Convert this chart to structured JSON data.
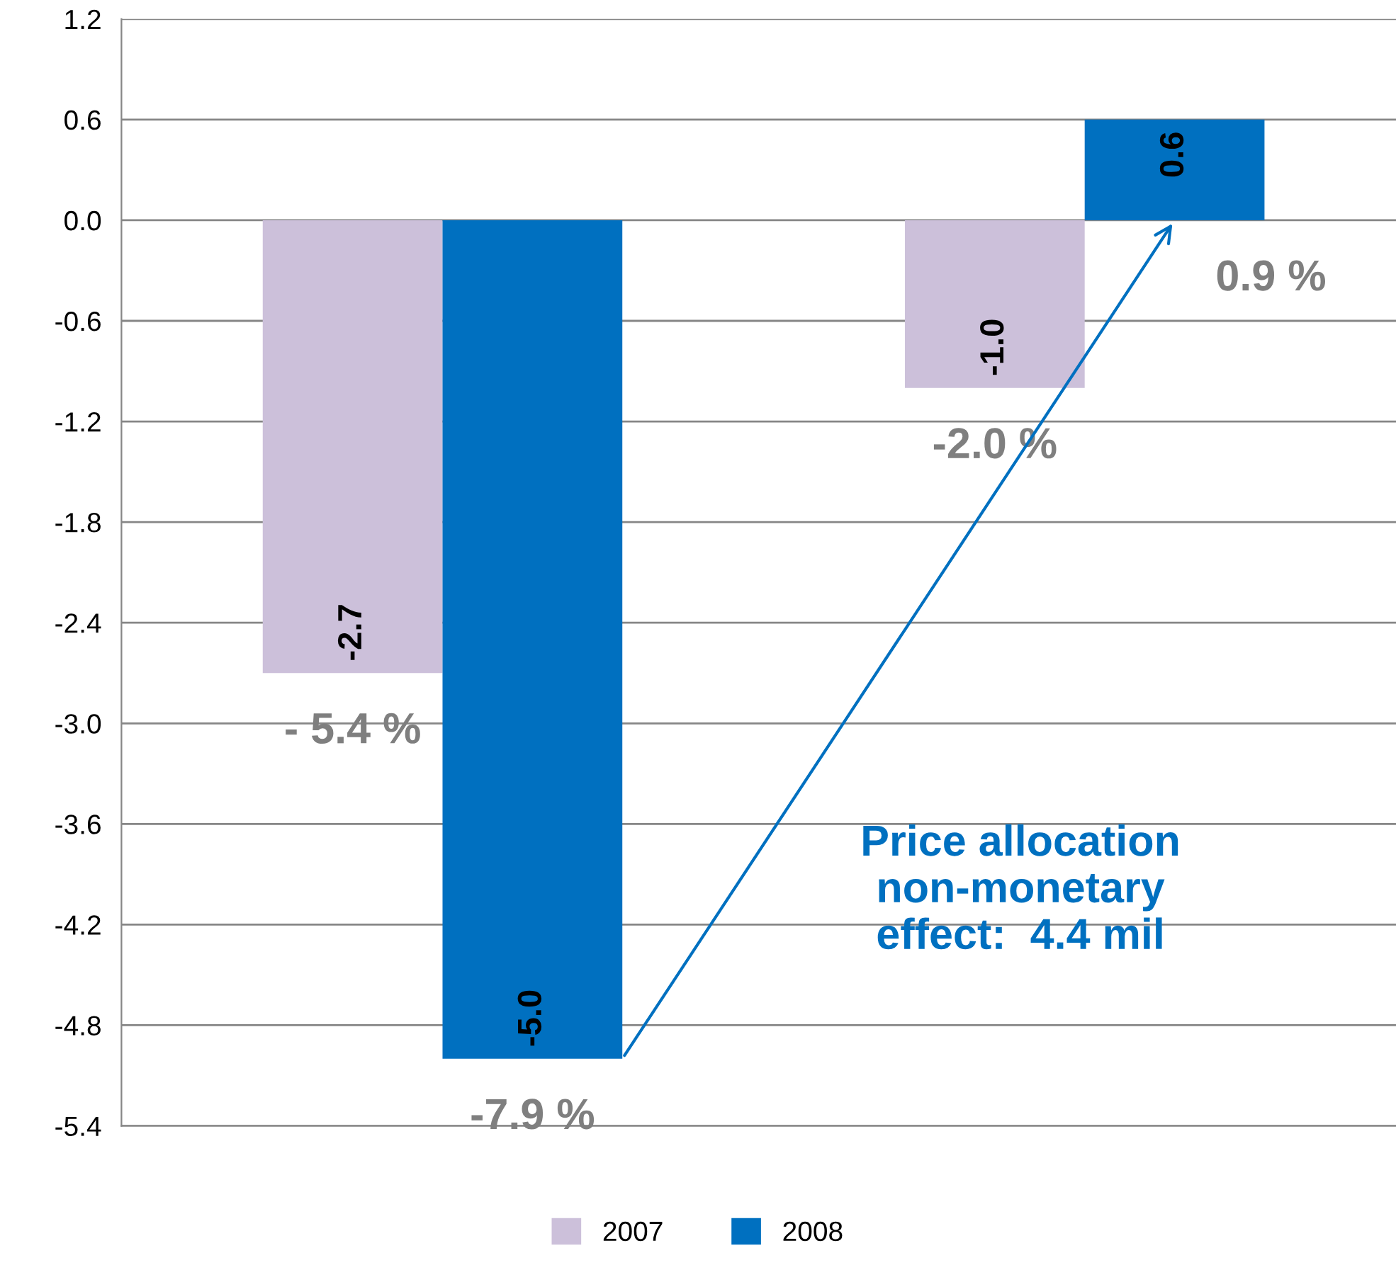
{
  "chart_data": {
    "type": "bar",
    "categories": [
      null,
      null
    ],
    "series": [
      {
        "name": "2007",
        "color": "#ccc0da",
        "values": [
          -2.7,
          -1.0
        ],
        "value_labels": [
          "-2.7",
          "-1.0"
        ]
      },
      {
        "name": "2008",
        "color": "#0070c0",
        "values": [
          -5.0,
          0.6
        ],
        "value_labels": [
          "-5.0",
          "0.6"
        ]
      }
    ],
    "ylim": [
      -5.4,
      1.2
    ],
    "yticks": [
      -5.4,
      -4.8,
      -4.2,
      -3.6,
      {
        "value": -3.0,
        "label": "-3.0"
      },
      -2.4,
      -1.8,
      -1.2,
      -0.6,
      {
        "value": 0,
        "label": "0.0"
      },
      0.6,
      1.2
    ],
    "grid": "y",
    "legend": "bottom",
    "annotations": [
      "- 5.4 %",
      "-7.9 %",
      "-2.0 %",
      "0.9 %",
      "Price allocation\nnon-monetary\neffect:  4.4 mil"
    ]
  }
}
